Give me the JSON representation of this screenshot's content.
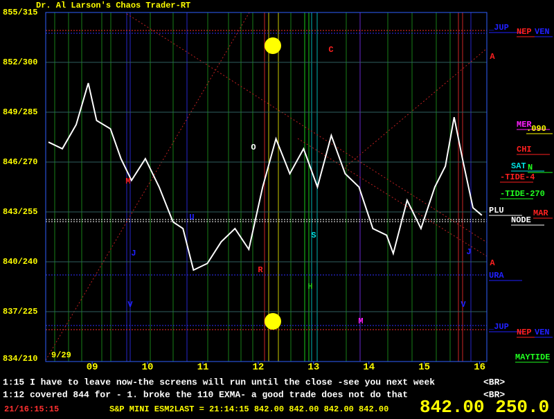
{
  "chart_data": {
    "type": "line",
    "title": "Dr. Al Larson's Chaos Trader-RT",
    "date_label": "9/29",
    "color": "#ffffff",
    "grid": true,
    "xlim": [
      8.16,
      16.13
    ],
    "xticks": [
      {
        "value": 9,
        "label": "09"
      },
      {
        "value": 10,
        "label": "10"
      },
      {
        "value": 11,
        "label": "11"
      },
      {
        "value": 12,
        "label": "12"
      },
      {
        "value": 13,
        "label": "13"
      },
      {
        "value": 14,
        "label": "14"
      },
      {
        "value": 15,
        "label": "15"
      },
      {
        "value": 16,
        "label": "16"
      }
    ],
    "ylim": [
      834,
      855
    ],
    "yticks": [
      {
        "value": 834,
        "label": "834/210"
      },
      {
        "value": 837,
        "label": "837/225"
      },
      {
        "value": 840,
        "label": "840/240"
      },
      {
        "value": 843,
        "label": "843/255"
      },
      {
        "value": 846,
        "label": "846/270"
      },
      {
        "value": 849,
        "label": "849/285"
      },
      {
        "value": 852,
        "label": "852/300"
      },
      {
        "value": 855,
        "label": "855/315"
      }
    ],
    "x": [
      8.21,
      8.46,
      8.71,
      8.93,
      9.08,
      9.33,
      9.52,
      9.71,
      9.96,
      10.21,
      10.46,
      10.64,
      10.83,
      11.08,
      11.33,
      11.58,
      11.83,
      12.08,
      12.32,
      12.57,
      12.82,
      13.07,
      13.32,
      13.57,
      13.82,
      14.07,
      14.32,
      14.44,
      14.69,
      14.94,
      15.19,
      15.38,
      15.54,
      15.69,
      15.88,
      16.04
    ],
    "values": [
      847.2,
      846.8,
      848.25,
      850.75,
      848.5,
      848,
      846.2,
      844.9,
      846.2,
      844.5,
      842.4,
      842,
      839.5,
      839.9,
      841.2,
      842,
      840.75,
      844.5,
      847.4,
      845.3,
      846.8,
      844.5,
      847.6,
      845.3,
      844.5,
      842,
      841.6,
      840.5,
      843.7,
      842,
      844.5,
      845.75,
      848.7,
      846.2,
      843.25,
      842.8
    ],
    "annotations": [
      {
        "text": "C",
        "color": "#ff2020"
      },
      {
        "text": "O",
        "color": "#ffffff"
      },
      {
        "text": "M",
        "color": "#ff2020"
      },
      {
        "text": "J",
        "color": "#2020ff"
      },
      {
        "text": "V",
        "color": "#2020ff"
      },
      {
        "text": "R",
        "color": "#ff2020"
      },
      {
        "text": "U",
        "color": "#2020ff"
      },
      {
        "text": "S",
        "color": "#00e0e0"
      },
      {
        "text": "H",
        "color": "#20c020"
      },
      {
        "text": "M",
        "color": "#ff20ff"
      },
      {
        "text": "J",
        "color": "#2020ff"
      },
      {
        "text": "V",
        "color": "#2020ff"
      },
      {
        "text": "A",
        "color": "#ff2020"
      },
      {
        "text": "A",
        "color": "#ff2020"
      }
    ],
    "right_labels": [
      {
        "text": "_JUP",
        "color": "#2020ff"
      },
      {
        "text": "NEP",
        "color": "#ff2020"
      },
      {
        "text": "VEN",
        "color": "#2020ff"
      },
      {
        "text": "MER",
        "color": "#ff20ff"
      },
      {
        "text": ".090",
        "color": "#ffff00"
      },
      {
        "text": "CHI",
        "color": "#ff2020"
      },
      {
        "text": "SAT",
        "color": "#00e0e0"
      },
      {
        "text": "N",
        "color": "#20ff20"
      },
      {
        "text": "-TIDE-4",
        "color": "#ff2020"
      },
      {
        "text": "-TIDE-270",
        "color": "#20ff20"
      },
      {
        "text": "PLU",
        "color": "#ffffff"
      },
      {
        "text": "MAR",
        "color": "#ff2020"
      },
      {
        "text": "NODE",
        "color": "#ffffff"
      },
      {
        "text": "URA",
        "color": "#2020ff"
      },
      {
        "text": "_JUP",
        "color": "#2020ff"
      },
      {
        "text": "NEP",
        "color": "#ff2020"
      },
      {
        "text": "VEN",
        "color": "#2020ff"
      },
      {
        "text": "MAYTIDE",
        "color": "#20ff20"
      }
    ]
  },
  "messages": [
    {
      "text": "1:15 I have to leave now-the screens will run until the close -see you next week",
      "button": "<BR>"
    },
    {
      "text": "1:12  covered 844 for - 1. broke the 110 EXMA- a good trade does not do that",
      "button": "<BR>"
    }
  ],
  "status": {
    "clock": "21/16:15:15",
    "quote": "S&P MINI ESM2LAST = 21:14:15 842.00 842.00 842.00 842.00",
    "big": "842.00 250.0"
  }
}
